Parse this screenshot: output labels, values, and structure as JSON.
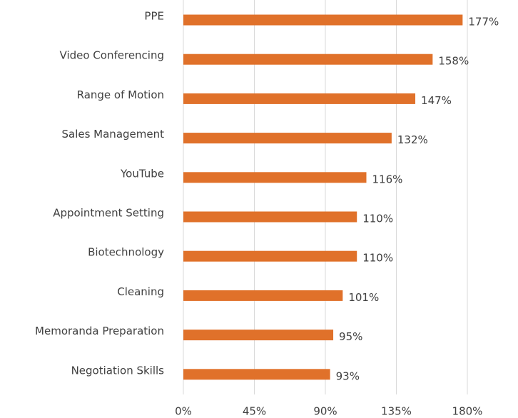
{
  "chart_data": {
    "type": "bar",
    "orientation": "horizontal",
    "categories": [
      "PPE",
      "Video Conferencing",
      "Range of Motion",
      "Sales Management",
      "YouTube",
      "Appointment Setting",
      "Biotechnology",
      "Cleaning",
      "Memoranda Preparation",
      "Negotiation Skills"
    ],
    "values": [
      177,
      158,
      147,
      132,
      116,
      110,
      110,
      101,
      95,
      93
    ],
    "value_labels": [
      "177%",
      "158%",
      "147%",
      "132%",
      "116%",
      "110%",
      "110%",
      "101%",
      "95%",
      "93%"
    ],
    "color": "#e0712a",
    "xlim": [
      0,
      180
    ],
    "xticks": [
      {
        "value": 0,
        "label": "0%"
      },
      {
        "value": 45,
        "label": "45%"
      },
      {
        "value": 90,
        "label": "90%"
      },
      {
        "value": 135,
        "label": "135%"
      },
      {
        "value": 180,
        "label": "180%"
      }
    ],
    "grid": true
  }
}
